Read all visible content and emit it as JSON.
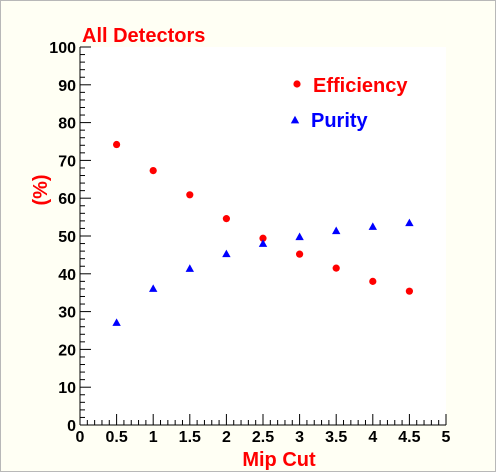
{
  "chart_data": {
    "type": "scatter",
    "title": "All Detectors",
    "xlabel": "Mip Cut",
    "ylabel": "(%)",
    "xlim": [
      0,
      5
    ],
    "ylim": [
      0,
      100
    ],
    "xticks": [
      0,
      0.5,
      1,
      1.5,
      2,
      2.5,
      3,
      3.5,
      4,
      4.5,
      5
    ],
    "xtick_labels": [
      "0",
      "0.5",
      "1",
      "1.5",
      "2",
      "2.5",
      "3",
      "3.5",
      "4",
      "4.5",
      "5"
    ],
    "yticks": [
      0,
      10,
      20,
      30,
      40,
      50,
      60,
      70,
      80,
      90,
      100
    ],
    "ytick_labels": [
      "0",
      "10",
      "20",
      "30",
      "40",
      "50",
      "60",
      "70",
      "80",
      "90",
      "100"
    ],
    "grid": false,
    "legend_position": "top-right",
    "series": [
      {
        "name": "Efficiency",
        "marker": "circle",
        "color": "#ff0000",
        "x": [
          0.5,
          1,
          1.5,
          2,
          2.5,
          3,
          3.5,
          4,
          4.5
        ],
        "y": [
          74.2,
          67.3,
          60.9,
          54.6,
          49.4,
          45.2,
          41.5,
          38.0,
          35.4
        ]
      },
      {
        "name": "Purity",
        "marker": "triangle",
        "color": "#0000ff",
        "x": [
          0.5,
          1,
          1.5,
          2,
          2.5,
          3,
          3.5,
          4,
          4.5
        ],
        "y": [
          27.1,
          36.1,
          41.4,
          45.3,
          48.0,
          49.8,
          51.4,
          52.5,
          53.5
        ]
      }
    ]
  },
  "colors": {
    "title": "#ff0000",
    "axis_label": "#ff0000",
    "frame_background": "#fffff4",
    "plot_background": "#ffffff"
  }
}
